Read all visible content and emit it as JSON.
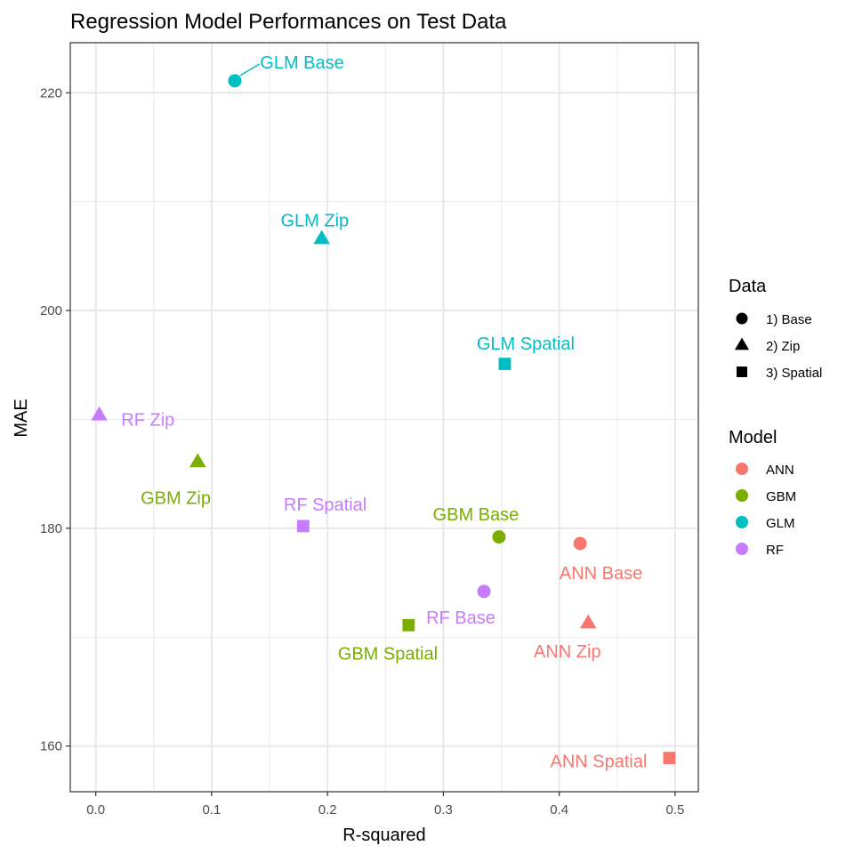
{
  "chart_data": {
    "type": "scatter",
    "title": "Regression Model Performances on Test Data",
    "xlabel": "R-squared",
    "ylabel": "MAE",
    "xlim": [
      -0.022,
      0.52
    ],
    "ylim": [
      155.8,
      224.6
    ],
    "xticks": [
      0.0,
      0.1,
      0.2,
      0.3,
      0.4,
      0.5
    ],
    "xtick_labels": [
      "0.0",
      "0.1",
      "0.2",
      "0.3",
      "0.4",
      "0.5"
    ],
    "yticks": [
      160,
      180,
      200,
      220
    ],
    "ytick_labels": [
      "160",
      "180",
      "200",
      "220"
    ],
    "grid": true,
    "legend_placement": "right",
    "legends": {
      "shape": {
        "title": "Data",
        "items": [
          {
            "label": "1) Base",
            "shape": "circle"
          },
          {
            "label": "2) Zip",
            "shape": "triangle"
          },
          {
            "label": "3) Spatial",
            "shape": "square"
          }
        ]
      },
      "color": {
        "title": "Model",
        "items": [
          {
            "label": "ANN",
            "color": "#F8766D"
          },
          {
            "label": "GBM",
            "color": "#7CAE00"
          },
          {
            "label": "GLM",
            "color": "#00BFC4"
          },
          {
            "label": "RF",
            "color": "#C77CFF"
          }
        ]
      }
    },
    "points": [
      {
        "label": "GLM Base",
        "model": "GLM",
        "data": "1) Base",
        "x": 0.12,
        "y": 221.1,
        "label_dx": 0.058,
        "label_dy": 1.7,
        "leader": true
      },
      {
        "label": "GLM Zip",
        "model": "GLM",
        "data": "2) Zip",
        "x": 0.195,
        "y": 206.6,
        "label_dx": -0.006,
        "label_dy": 1.7,
        "leader": false
      },
      {
        "label": "GLM Spatial",
        "model": "GLM",
        "data": "3) Spatial",
        "x": 0.353,
        "y": 195.1,
        "label_dx": 0.018,
        "label_dy": 1.9,
        "leader": false
      },
      {
        "label": "RF Zip",
        "model": "RF",
        "data": "2) Zip",
        "x": 0.003,
        "y": 190.4,
        "label_dx": 0.042,
        "label_dy": -0.4,
        "leader": false
      },
      {
        "label": "GBM Zip",
        "model": "GBM",
        "data": "2) Zip",
        "x": 0.088,
        "y": 186.1,
        "label_dx": -0.019,
        "label_dy": -3.3,
        "leader": false
      },
      {
        "label": "RF Spatial",
        "model": "RF",
        "data": "3) Spatial",
        "x": 0.179,
        "y": 180.2,
        "label_dx": 0.019,
        "label_dy": 2.0,
        "leader": false
      },
      {
        "label": "GBM Base",
        "model": "GBM",
        "data": "1) Base",
        "x": 0.348,
        "y": 179.2,
        "label_dx": -0.02,
        "label_dy": 2.1,
        "leader": false
      },
      {
        "label": "ANN Base",
        "model": "ANN",
        "data": "1) Base",
        "x": 0.418,
        "y": 178.6,
        "label_dx": 0.018,
        "label_dy": -2.7,
        "leader": false
      },
      {
        "label": "RF Base",
        "model": "RF",
        "data": "1) Base",
        "x": 0.335,
        "y": 174.2,
        "label_dx": -0.02,
        "label_dy": -2.4,
        "leader": false
      },
      {
        "label": "ANN Zip",
        "model": "ANN",
        "data": "2) Zip",
        "x": 0.425,
        "y": 171.3,
        "label_dx": -0.018,
        "label_dy": -2.6,
        "leader": false
      },
      {
        "label": "GBM Spatial",
        "model": "GBM",
        "data": "3) Spatial",
        "x": 0.27,
        "y": 171.1,
        "label_dx": -0.018,
        "label_dy": -2.6,
        "leader": false
      },
      {
        "label": "ANN Spatial",
        "model": "ANN",
        "data": "3) Spatial",
        "x": 0.495,
        "y": 158.9,
        "label_dx": -0.061,
        "label_dy": -0.3,
        "leader": false
      }
    ]
  }
}
